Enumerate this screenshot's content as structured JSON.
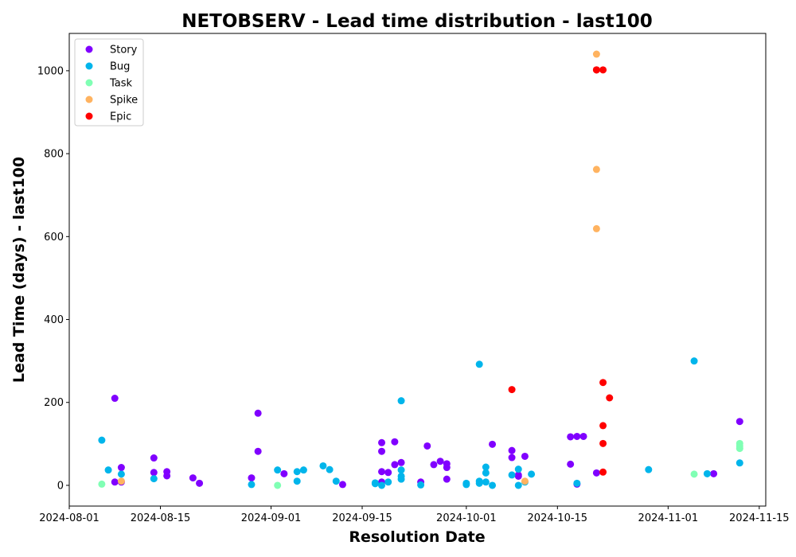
{
  "chart_data": {
    "type": "scatter",
    "title": "NETOBSERV - Lead time distribution - last100",
    "xlabel": "Resolution Date",
    "ylabel": "Lead Time (days) - last100",
    "x_type": "date",
    "xlim": [
      "2024-08-01",
      "2024-11-16"
    ],
    "ylim": [
      -50,
      1090
    ],
    "x_ticks": [
      "2024-08-01",
      "2024-08-15",
      "2024-09-01",
      "2024-09-15",
      "2024-10-01",
      "2024-10-15",
      "2024-11-01",
      "2024-11-15"
    ],
    "y_ticks": [
      0,
      200,
      400,
      600,
      800,
      1000
    ],
    "legend_position": "upper-left",
    "grid": false,
    "series": [
      {
        "name": "Story",
        "color": "#8000ff",
        "points": [
          [
            "2024-08-08",
            210
          ],
          [
            "2024-08-08",
            8
          ],
          [
            "2024-08-09",
            43
          ],
          [
            "2024-08-09",
            8
          ],
          [
            "2024-08-14",
            66
          ],
          [
            "2024-08-14",
            31
          ],
          [
            "2024-08-16",
            33
          ],
          [
            "2024-08-16",
            23
          ],
          [
            "2024-08-20",
            18
          ],
          [
            "2024-08-21",
            5
          ],
          [
            "2024-08-29",
            18
          ],
          [
            "2024-08-30",
            174
          ],
          [
            "2024-08-30",
            82
          ],
          [
            "2024-09-03",
            28
          ],
          [
            "2024-09-12",
            2
          ],
          [
            "2024-09-18",
            103
          ],
          [
            "2024-09-18",
            82
          ],
          [
            "2024-09-18",
            33
          ],
          [
            "2024-09-18",
            8
          ],
          [
            "2024-09-19",
            31
          ],
          [
            "2024-09-20",
            105
          ],
          [
            "2024-09-20",
            50
          ],
          [
            "2024-09-21",
            55
          ],
          [
            "2024-09-24",
            8
          ],
          [
            "2024-09-25",
            95
          ],
          [
            "2024-09-26",
            50
          ],
          [
            "2024-09-27",
            58
          ],
          [
            "2024-09-28",
            52
          ],
          [
            "2024-09-28",
            43
          ],
          [
            "2024-09-28",
            15
          ],
          [
            "2024-10-05",
            99
          ],
          [
            "2024-10-08",
            84
          ],
          [
            "2024-10-08",
            67
          ],
          [
            "2024-10-09",
            22
          ],
          [
            "2024-10-09",
            25
          ],
          [
            "2024-10-10",
            70
          ],
          [
            "2024-10-17",
            117
          ],
          [
            "2024-10-17",
            51
          ],
          [
            "2024-10-18",
            118
          ],
          [
            "2024-10-19",
            118
          ],
          [
            "2024-10-18",
            3
          ],
          [
            "2024-10-21",
            30
          ],
          [
            "2024-11-08",
            28
          ],
          [
            "2024-11-12",
            154
          ]
        ]
      },
      {
        "name": "Bug",
        "color": "#00b5eb",
        "points": [
          [
            "2024-08-06",
            109
          ],
          [
            "2024-08-07",
            37
          ],
          [
            "2024-08-09",
            27
          ],
          [
            "2024-08-14",
            16
          ],
          [
            "2024-08-29",
            2
          ],
          [
            "2024-09-02",
            37
          ],
          [
            "2024-09-05",
            10
          ],
          [
            "2024-09-05",
            33
          ],
          [
            "2024-09-06",
            37
          ],
          [
            "2024-09-09",
            47
          ],
          [
            "2024-09-10",
            38
          ],
          [
            "2024-09-11",
            10
          ],
          [
            "2024-09-17",
            6
          ],
          [
            "2024-09-17",
            4
          ],
          [
            "2024-09-18",
            0
          ],
          [
            "2024-09-19",
            8
          ],
          [
            "2024-09-21",
            204
          ],
          [
            "2024-09-21",
            37
          ],
          [
            "2024-09-21",
            22
          ],
          [
            "2024-09-21",
            15
          ],
          [
            "2024-09-24",
            1
          ],
          [
            "2024-10-01",
            5
          ],
          [
            "2024-10-01",
            2
          ],
          [
            "2024-10-03",
            292
          ],
          [
            "2024-10-03",
            10
          ],
          [
            "2024-10-03",
            5
          ],
          [
            "2024-10-04",
            8
          ],
          [
            "2024-10-04",
            44
          ],
          [
            "2024-10-04",
            30
          ],
          [
            "2024-10-05",
            0
          ],
          [
            "2024-10-08",
            25
          ],
          [
            "2024-10-09",
            39
          ],
          [
            "2024-10-09",
            0
          ],
          [
            "2024-10-10",
            8
          ],
          [
            "2024-10-11",
            27
          ],
          [
            "2024-10-18",
            5
          ],
          [
            "2024-10-29",
            38
          ],
          [
            "2024-11-05",
            300
          ],
          [
            "2024-11-07",
            28
          ],
          [
            "2024-11-12",
            54
          ]
        ]
      },
      {
        "name": "Task",
        "color": "#80ffb4",
        "points": [
          [
            "2024-08-06",
            3
          ],
          [
            "2024-09-02",
            0
          ],
          [
            "2024-11-05",
            27
          ],
          [
            "2024-11-12",
            101
          ],
          [
            "2024-11-12",
            95
          ],
          [
            "2024-11-12",
            89
          ]
        ]
      },
      {
        "name": "Spike",
        "color": "#ffb360",
        "points": [
          [
            "2024-08-09",
            10
          ],
          [
            "2024-10-10",
            10
          ],
          [
            "2024-10-21",
            1040
          ],
          [
            "2024-10-21",
            762
          ],
          [
            "2024-10-21",
            619
          ]
        ]
      },
      {
        "name": "Epic",
        "color": "#ff0000",
        "points": [
          [
            "2024-10-08",
            231
          ],
          [
            "2024-10-21",
            1002
          ],
          [
            "2024-10-21",
            1002
          ],
          [
            "2024-10-22",
            1002
          ],
          [
            "2024-10-22",
            248
          ],
          [
            "2024-10-22",
            144
          ],
          [
            "2024-10-22",
            101
          ],
          [
            "2024-10-23",
            211
          ],
          [
            "2024-10-22",
            32
          ]
        ]
      }
    ]
  }
}
